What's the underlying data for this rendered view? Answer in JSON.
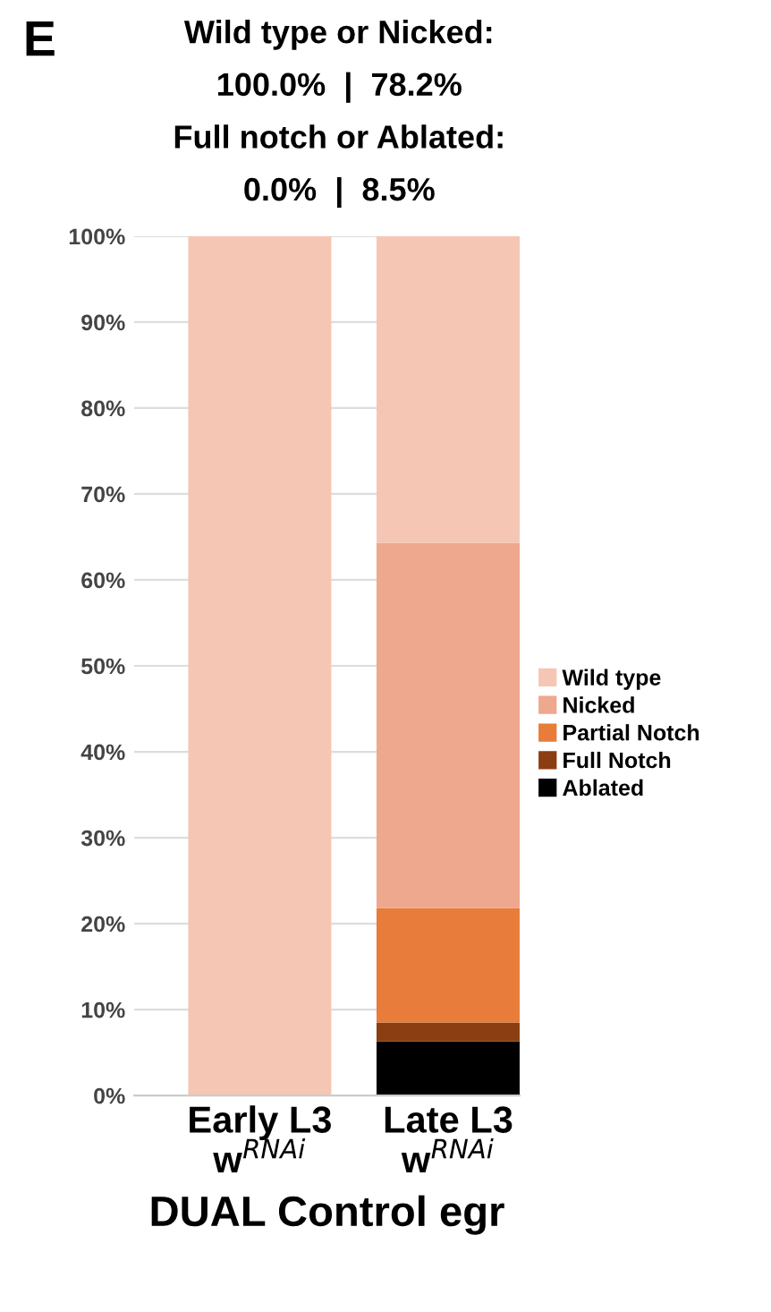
{
  "chart_data": {
    "type": "bar",
    "stacked": true,
    "categories": [
      "Early L3\nw$^{RNAi}$",
      "Late L3\nw$^{RNAi}$"
    ],
    "series": [
      {
        "name": "Ablated",
        "color": "#000000",
        "values": [
          0,
          6.3
        ]
      },
      {
        "name": "Full Notch",
        "color": "#8b3e12",
        "values": [
          0,
          2.2
        ]
      },
      {
        "name": "Partial Notch",
        "color": "#e87c3a",
        "values": [
          0,
          13.3
        ]
      },
      {
        "name": "Nicked",
        "color": "#eea88d",
        "values": [
          0,
          42.5
        ]
      },
      {
        "name": "Wild type",
        "color": "#f5c6b4",
        "values": [
          100,
          35.7
        ]
      }
    ],
    "ylim": [
      0,
      100
    ],
    "yticks": [
      {
        "value": 0,
        "label": "0%"
      },
      {
        "value": 10,
        "label": "10%"
      },
      {
        "value": 20,
        "label": "20%"
      },
      {
        "value": 30,
        "label": "30%"
      },
      {
        "value": 40,
        "label": "40%"
      },
      {
        "value": 50,
        "label": "50%"
      },
      {
        "value": 60,
        "label": "60%"
      },
      {
        "value": 70,
        "label": "70%"
      },
      {
        "value": 80,
        "label": "80%"
      },
      {
        "value": 90,
        "label": "90%"
      },
      {
        "value": 100,
        "label": "100%"
      }
    ],
    "grid": "y",
    "legend": "right",
    "xlabel": "DUAL Control egr",
    "annotations": [
      "E",
      "Wild type or Nicked:",
      "100.0%  |  78.2%",
      "Full notch or Ablated:",
      "0.0%  |  8.5%"
    ]
  }
}
